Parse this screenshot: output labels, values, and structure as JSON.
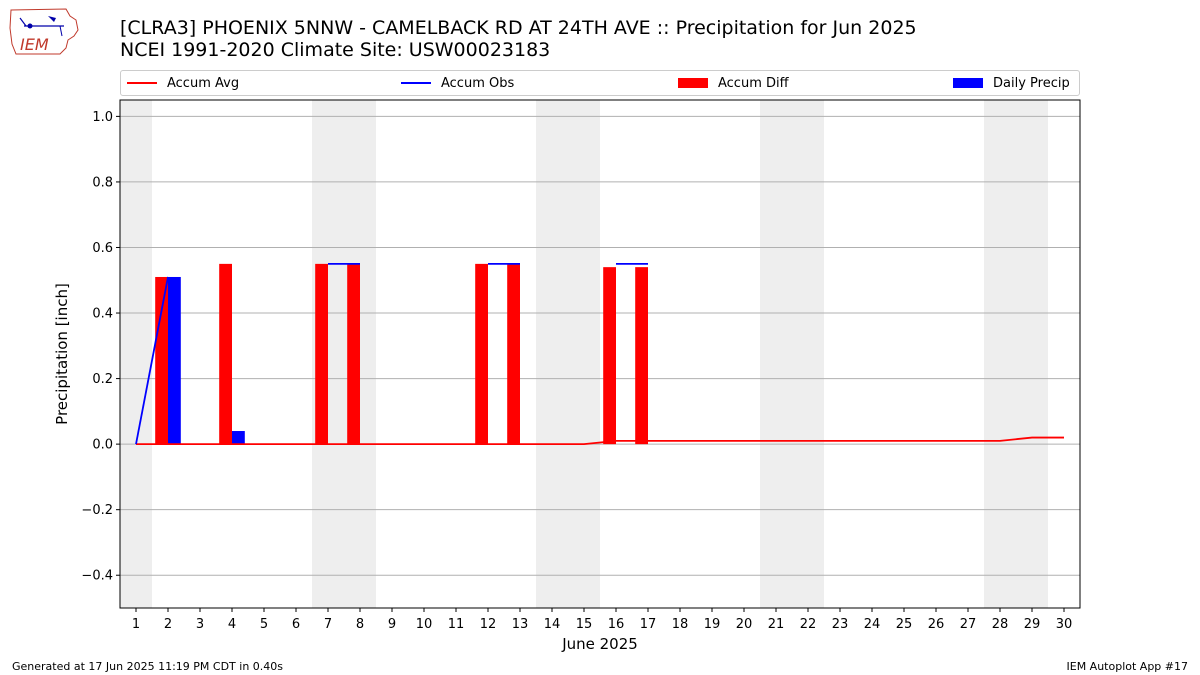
{
  "logo_text": "IEM",
  "title_line1": "[CLRA3] PHOENIX 5NNW - CAMELBACK RD AT 24TH AVE :: Precipitation for Jun 2025",
  "title_line2": "NCEI 1991-2020 Climate Site: USW00023183",
  "footer_left": "Generated at 17 Jun 2025 11:19 PM CDT in 0.40s",
  "footer_right": "IEM Autoplot App #17",
  "colors": {
    "avg": "#ff0000",
    "obs": "#0000ff",
    "diff": "#ff0000",
    "daily": "#0000ff",
    "weekend": "#eeeeee",
    "grid": "#b0b0b0"
  },
  "chart_data": {
    "type": "bar",
    "xlabel": "June 2025",
    "ylabel": "Precipitation [inch]",
    "ylim": [
      -0.5,
      1.05
    ],
    "yticks": [
      -0.4,
      -0.2,
      0.0,
      0.2,
      0.4,
      0.6,
      0.8,
      1.0
    ],
    "ytick_labels": [
      "−0.4",
      "−0.2",
      "0.0",
      "0.2",
      "0.4",
      "0.6",
      "0.8",
      "1.0"
    ],
    "xlim": [
      0.5,
      30.5
    ],
    "days": [
      1,
      2,
      3,
      4,
      5,
      6,
      7,
      8,
      9,
      10,
      11,
      12,
      13,
      14,
      15,
      16,
      17,
      18,
      19,
      20,
      21,
      22,
      23,
      24,
      25,
      26,
      27,
      28,
      29,
      30
    ],
    "grid": "horizontal",
    "legend_position": "top",
    "weekend_spans": [
      [
        0.5,
        1.5
      ],
      [
        6.5,
        8.5
      ],
      [
        13.5,
        15.5
      ],
      [
        20.5,
        22.5
      ],
      [
        27.5,
        29.5
      ]
    ],
    "series": [
      {
        "name": "Accum Avg",
        "kind": "line",
        "x": [
          1,
          2,
          3,
          4,
          5,
          6,
          7,
          8,
          9,
          10,
          11,
          12,
          13,
          14,
          15,
          16,
          17,
          18,
          19,
          20,
          21,
          22,
          23,
          24,
          25,
          26,
          27,
          28,
          29,
          30
        ],
        "values": [
          0,
          0,
          0,
          0,
          0,
          0,
          0,
          0,
          0,
          0,
          0,
          0,
          0,
          0,
          0,
          0.01,
          0.01,
          0.01,
          0.01,
          0.01,
          0.01,
          0.01,
          0.01,
          0.01,
          0.01,
          0.01,
          0.01,
          0.01,
          0.02,
          0.02
        ]
      },
      {
        "name": "Accum Obs",
        "kind": "line",
        "segments": [
          {
            "x": [
              1,
              2
            ],
            "values": [
              0,
              0.51
            ]
          },
          {
            "x": [
              7,
              8
            ],
            "values": [
              0.55,
              0.55
            ]
          },
          {
            "x": [
              12,
              13
            ],
            "values": [
              0.55,
              0.55
            ]
          },
          {
            "x": [
              16,
              17
            ],
            "values": [
              0.55,
              0.55
            ]
          }
        ]
      },
      {
        "name": "Accum Diff",
        "kind": "bar",
        "x": [
          2,
          4,
          7,
          8,
          12,
          13,
          16,
          17
        ],
        "values": [
          0.51,
          0.55,
          0.55,
          0.55,
          0.55,
          0.55,
          0.54,
          0.54
        ]
      },
      {
        "name": "Daily Precip",
        "kind": "bar",
        "x": [
          2,
          4
        ],
        "values": [
          0.51,
          0.04
        ]
      }
    ]
  }
}
